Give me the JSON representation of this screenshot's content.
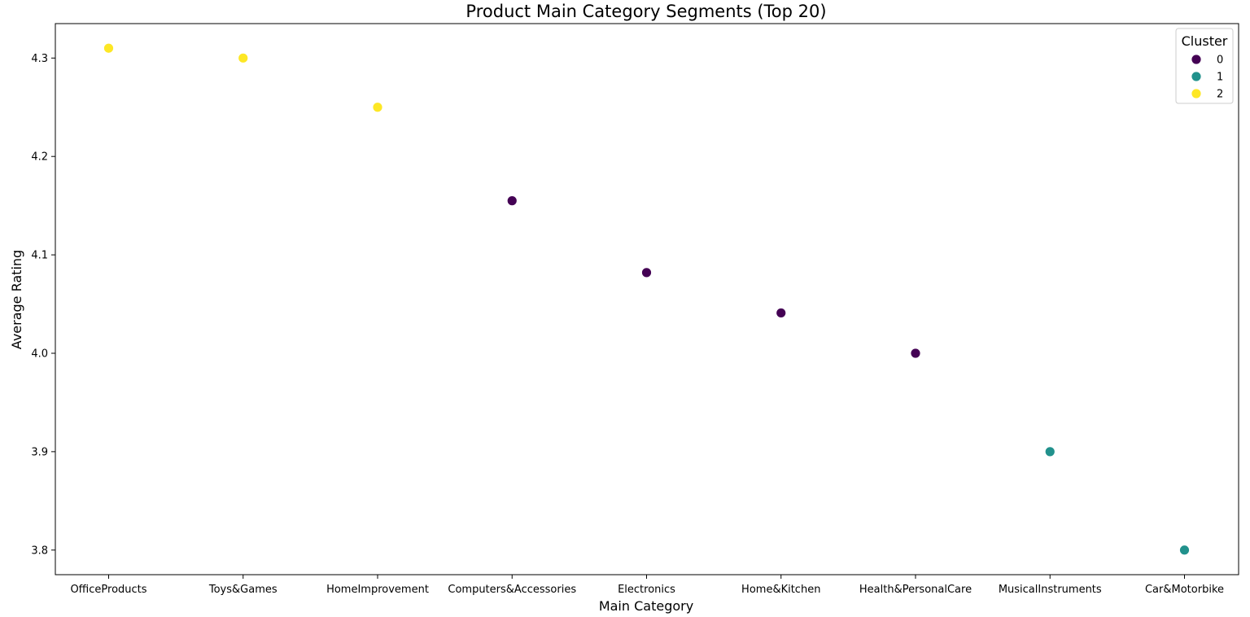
{
  "chart_data": {
    "type": "scatter",
    "title": "Product Main Category Segments (Top 20)",
    "xlabel": "Main Category",
    "ylabel": "Average Rating",
    "categories": [
      "OfficeProducts",
      "Toys&Games",
      "HomeImprovement",
      "Computers&Accessories",
      "Electronics",
      "Home&Kitchen",
      "Health&PersonalCare",
      "MusicalInstruments",
      "Car&Motorbike"
    ],
    "values": [
      4.31,
      4.3,
      4.25,
      4.155,
      4.082,
      4.041,
      4.0,
      3.9,
      3.8
    ],
    "clusters": [
      2,
      2,
      2,
      0,
      0,
      0,
      0,
      1,
      1
    ],
    "ylim": [
      3.775,
      4.335
    ],
    "yticks": [
      3.8,
      3.9,
      4.0,
      4.1,
      4.2,
      4.3
    ],
    "grid": false,
    "legend": {
      "title": "Cluster",
      "placement": "top-right",
      "entries": [
        {
          "label": "0",
          "color": "#440154"
        },
        {
          "label": "1",
          "color": "#21918c"
        },
        {
          "label": "2",
          "color": "#fde725"
        }
      ]
    }
  }
}
